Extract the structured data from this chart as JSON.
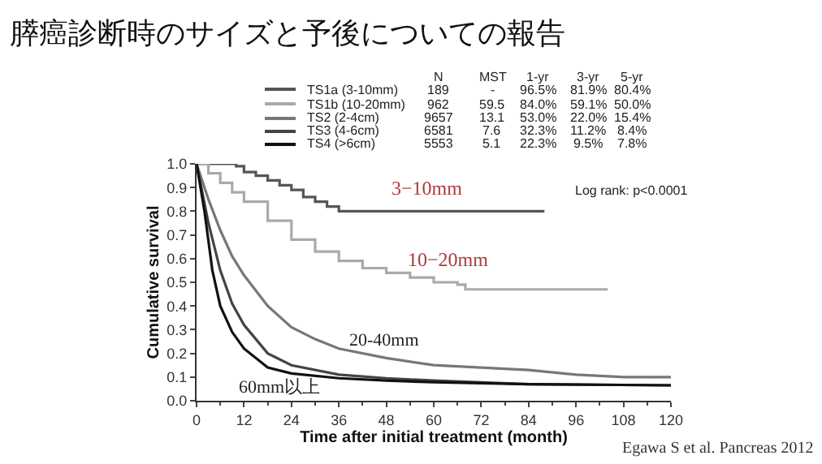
{
  "chart_data": {
    "type": "line",
    "title": "膵癌診断時のサイズと予後についての報告",
    "xlabel": "Time after initial treatment (month)",
    "ylabel": "Cumulative survival",
    "xlim": [
      0,
      120
    ],
    "xticks": [
      0,
      12,
      24,
      36,
      48,
      60,
      72,
      84,
      96,
      108,
      120
    ],
    "ylim": [
      0,
      1
    ],
    "yticks": [
      {
        "value": 0,
        "label": "0.0"
      },
      0.1,
      0.2,
      0.3,
      0.4,
      0.5,
      0.6,
      0.7,
      0.8,
      0.9,
      {
        "value": 1,
        "label": "1.0"
      }
    ],
    "grid": false,
    "legend": "top",
    "marker": "none",
    "line_style": "solid",
    "series": [
      {
        "name": "TS1a (3-10mm)",
        "type": "step",
        "color": "#555555",
        "x": [
          0,
          6,
          10,
          12,
          15,
          18,
          21,
          24,
          27,
          30,
          33,
          36,
          88
        ],
        "values": [
          1,
          1,
          0.99,
          0.965,
          0.95,
          0.93,
          0.91,
          0.89,
          0.86,
          0.84,
          0.82,
          0.8,
          0.8
        ]
      },
      {
        "name": "TS1b (10-20mm)",
        "type": "step",
        "color": "#aaaaaa",
        "x": [
          0,
          3,
          6,
          9,
          12,
          18,
          24,
          30,
          36,
          42,
          48,
          54,
          60,
          66,
          68,
          104
        ],
        "values": [
          1,
          0.96,
          0.92,
          0.88,
          0.84,
          0.76,
          0.68,
          0.63,
          0.59,
          0.56,
          0.54,
          0.52,
          0.5,
          0.49,
          0.47,
          0.47
        ]
      },
      {
        "name": "TS2 (2-4cm)",
        "color": "#777777",
        "x": [
          0,
          3,
          6,
          9,
          12,
          18,
          24,
          30,
          36,
          48,
          60,
          72,
          84,
          96,
          108,
          120
        ],
        "values": [
          1,
          0.85,
          0.72,
          0.61,
          0.53,
          0.4,
          0.31,
          0.26,
          0.22,
          0.18,
          0.15,
          0.14,
          0.13,
          0.11,
          0.1,
          0.1
        ]
      },
      {
        "name": "TS3 (4-6cm)",
        "color": "#444444",
        "x": [
          0,
          3,
          6,
          9,
          12,
          18,
          24,
          36,
          48,
          60,
          84,
          120
        ],
        "values": [
          1,
          0.75,
          0.55,
          0.41,
          0.32,
          0.2,
          0.15,
          0.11,
          0.095,
          0.085,
          0.07,
          0.065
        ]
      },
      {
        "name": "TS4 (>6cm)",
        "color": "#111111",
        "x": [
          0,
          2,
          4,
          6,
          9,
          12,
          18,
          24,
          36,
          48,
          60,
          84,
          120
        ],
        "values": [
          1,
          0.8,
          0.55,
          0.4,
          0.29,
          0.22,
          0.14,
          0.115,
          0.095,
          0.085,
          0.078,
          0.07,
          0.065
        ]
      }
    ],
    "annotations": [
      "N",
      "MST",
      "1-yr",
      "3-yr",
      "5-yr",
      "189",
      "-",
      "96.5%",
      "81.9%",
      "80.4%",
      "962",
      "59.5",
      "84.0%",
      "59.1%",
      "50.0%",
      "9657",
      "13.1",
      "53.0%",
      "22.0%",
      "15.4%",
      "6581",
      "7.6",
      "32.3%",
      "11.2%",
      "8.4%",
      "5553",
      "5.1",
      "22.3%",
      "9.5%",
      "7.8%",
      "Log rank: p<0.0001",
      "Egawa S et al. Pancreas 2012",
      "3−10mm",
      "10−20mm",
      "20-40mm",
      "60mm以上"
    ]
  }
}
